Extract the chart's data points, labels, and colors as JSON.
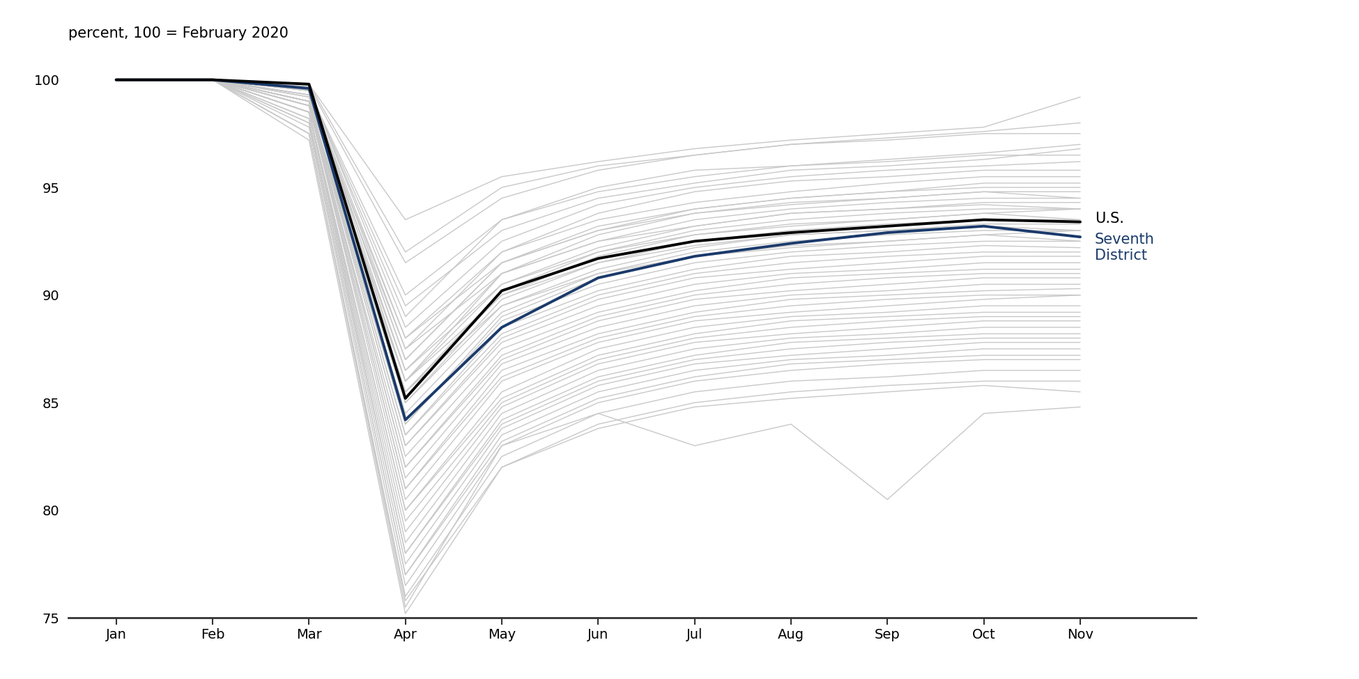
{
  "title": "percent, 100 = February 2020",
  "months": [
    "Jan",
    "Feb",
    "Mar",
    "Apr",
    "May",
    "Jun",
    "Jul",
    "Aug",
    "Sep",
    "Oct",
    "Nov"
  ],
  "month_indices": [
    0,
    1,
    2,
    3,
    4,
    5,
    6,
    7,
    8,
    9,
    10
  ],
  "us_data": [
    100.0,
    100.0,
    99.8,
    85.2,
    90.2,
    91.7,
    92.5,
    92.9,
    93.2,
    93.5,
    93.4
  ],
  "seventh_district": [
    100.0,
    100.0,
    99.6,
    84.2,
    88.5,
    90.8,
    91.8,
    92.4,
    92.9,
    93.2,
    92.7
  ],
  "states": [
    [
      100.0,
      100.0,
      99.8,
      93.5,
      95.5,
      96.2,
      96.8,
      97.2,
      97.5,
      97.8,
      99.2
    ],
    [
      100.0,
      100.0,
      99.7,
      91.5,
      94.5,
      95.8,
      96.5,
      97.0,
      97.3,
      97.6,
      98.0
    ],
    [
      100.0,
      100.0,
      99.8,
      92.0,
      95.0,
      96.0,
      96.5,
      97.0,
      97.2,
      97.5,
      97.5
    ],
    [
      100.0,
      100.0,
      99.5,
      90.0,
      93.5,
      94.8,
      95.5,
      96.0,
      96.3,
      96.6,
      97.0
    ],
    [
      100.0,
      100.0,
      99.5,
      89.5,
      93.0,
      94.5,
      95.2,
      95.8,
      96.0,
      96.3,
      96.8
    ],
    [
      100.0,
      100.0,
      99.5,
      89.0,
      93.5,
      95.0,
      95.8,
      96.0,
      96.2,
      96.5,
      96.5
    ],
    [
      100.0,
      100.0,
      99.6,
      88.5,
      92.5,
      94.2,
      95.0,
      95.5,
      95.8,
      96.0,
      96.2
    ],
    [
      100.0,
      100.0,
      99.5,
      88.0,
      92.0,
      93.8,
      94.8,
      95.3,
      95.5,
      95.8,
      95.8
    ],
    [
      100.0,
      100.0,
      99.5,
      87.5,
      92.0,
      93.5,
      94.3,
      94.8,
      95.2,
      95.5,
      95.5
    ],
    [
      100.0,
      100.0,
      99.5,
      87.0,
      91.5,
      93.2,
      94.0,
      94.5,
      94.8,
      95.2,
      95.2
    ],
    [
      100.0,
      100.0,
      99.5,
      87.0,
      91.5,
      93.0,
      94.0,
      94.5,
      94.8,
      95.0,
      95.0
    ],
    [
      100.0,
      100.0,
      99.5,
      86.5,
      91.0,
      92.8,
      93.8,
      94.3,
      94.5,
      94.8,
      94.8
    ],
    [
      100.0,
      100.0,
      99.5,
      86.0,
      91.0,
      92.5,
      93.5,
      94.0,
      94.3,
      94.5,
      94.5
    ],
    [
      100.0,
      100.0,
      99.3,
      86.0,
      90.5,
      92.2,
      93.2,
      93.8,
      94.0,
      94.3,
      94.3
    ],
    [
      100.0,
      100.0,
      99.3,
      85.5,
      90.2,
      92.0,
      93.0,
      93.5,
      93.8,
      94.0,
      94.0
    ],
    [
      100.0,
      100.0,
      99.5,
      85.5,
      90.0,
      91.8,
      92.8,
      93.3,
      93.5,
      93.8,
      94.0
    ],
    [
      100.0,
      100.0,
      99.3,
      85.0,
      89.8,
      91.5,
      92.5,
      93.0,
      93.3,
      93.5,
      93.5
    ],
    [
      100.0,
      100.0,
      99.2,
      85.0,
      89.5,
      91.2,
      92.2,
      92.8,
      93.0,
      93.3,
      93.3
    ],
    [
      100.0,
      100.0,
      99.0,
      84.5,
      89.2,
      91.0,
      92.0,
      92.5,
      92.8,
      93.0,
      93.0
    ],
    [
      100.0,
      100.0,
      99.0,
      84.0,
      89.0,
      90.8,
      91.8,
      92.3,
      92.5,
      92.8,
      93.0
    ],
    [
      100.0,
      100.0,
      99.0,
      84.0,
      88.8,
      90.5,
      91.5,
      92.0,
      92.3,
      92.5,
      92.5
    ],
    [
      100.0,
      100.0,
      99.0,
      83.5,
      88.5,
      90.2,
      91.2,
      91.8,
      92.0,
      92.3,
      92.2
    ],
    [
      100.0,
      100.0,
      99.0,
      83.5,
      88.2,
      90.0,
      91.0,
      91.5,
      91.8,
      92.0,
      92.0
    ],
    [
      100.0,
      100.0,
      99.0,
      83.0,
      88.0,
      89.8,
      90.8,
      91.2,
      91.5,
      91.8,
      91.8
    ],
    [
      100.0,
      100.0,
      99.0,
      83.0,
      87.8,
      89.5,
      90.5,
      91.0,
      91.2,
      91.5,
      91.5
    ],
    [
      100.0,
      100.0,
      98.8,
      82.5,
      87.5,
      89.2,
      90.2,
      90.8,
      91.0,
      91.2,
      91.2
    ],
    [
      100.0,
      100.0,
      99.0,
      82.0,
      87.2,
      89.0,
      90.0,
      90.5,
      90.8,
      91.0,
      91.0
    ],
    [
      100.0,
      100.0,
      98.8,
      82.0,
      87.0,
      88.8,
      89.8,
      90.2,
      90.5,
      90.8,
      90.8
    ],
    [
      100.0,
      100.0,
      98.8,
      81.5,
      86.8,
      88.5,
      89.5,
      90.0,
      90.2,
      90.5,
      90.5
    ],
    [
      100.0,
      100.0,
      98.8,
      81.0,
      86.5,
      88.2,
      89.2,
      89.8,
      90.0,
      90.2,
      90.3
    ],
    [
      100.0,
      100.0,
      98.8,
      81.0,
      86.2,
      88.0,
      89.0,
      89.5,
      89.8,
      90.0,
      90.0
    ],
    [
      100.0,
      100.0,
      98.8,
      80.5,
      86.0,
      87.8,
      88.8,
      89.2,
      89.5,
      89.8,
      90.0
    ],
    [
      100.0,
      100.0,
      98.5,
      80.0,
      85.5,
      87.5,
      88.5,
      89.0,
      89.2,
      89.5,
      89.5
    ],
    [
      100.0,
      100.0,
      98.5,
      80.0,
      85.2,
      87.2,
      88.2,
      88.8,
      89.0,
      89.2,
      89.2
    ],
    [
      100.0,
      100.0,
      98.5,
      79.5,
      85.0,
      87.0,
      88.0,
      88.5,
      88.8,
      89.0,
      89.0
    ],
    [
      100.0,
      100.0,
      98.5,
      79.0,
      84.8,
      86.8,
      87.8,
      88.2,
      88.5,
      88.8,
      88.8
    ],
    [
      100.0,
      100.0,
      98.5,
      78.5,
      84.5,
      86.5,
      87.5,
      88.0,
      88.2,
      88.5,
      88.5
    ],
    [
      100.0,
      100.0,
      98.5,
      78.0,
      84.2,
      86.2,
      87.2,
      87.8,
      88.0,
      88.2,
      88.2
    ],
    [
      100.0,
      100.0,
      98.2,
      78.0,
      84.0,
      86.0,
      87.0,
      87.5,
      87.8,
      88.0,
      88.0
    ],
    [
      100.0,
      100.0,
      98.2,
      77.5,
      83.8,
      85.8,
      86.8,
      87.2,
      87.5,
      87.8,
      87.8
    ],
    [
      100.0,
      100.0,
      98.0,
      77.0,
      83.5,
      85.5,
      86.5,
      87.0,
      87.2,
      87.5,
      87.5
    ],
    [
      100.0,
      100.0,
      98.0,
      77.0,
      83.2,
      85.2,
      86.2,
      86.8,
      87.0,
      87.2,
      87.2
    ],
    [
      100.0,
      100.0,
      97.8,
      76.5,
      83.0,
      85.0,
      86.0,
      86.5,
      86.8,
      87.0,
      87.0
    ],
    [
      100.0,
      100.0,
      97.5,
      76.0,
      82.5,
      84.5,
      85.5,
      86.0,
      86.2,
      86.5,
      86.5
    ],
    [
      100.0,
      100.0,
      97.5,
      75.8,
      82.0,
      84.0,
      85.0,
      85.5,
      85.8,
      86.0,
      86.0
    ],
    [
      100.0,
      100.0,
      97.5,
      75.5,
      83.0,
      84.5,
      83.0,
      84.0,
      80.5,
      84.5,
      84.8
    ],
    [
      100.0,
      100.0,
      97.2,
      75.2,
      82.0,
      83.8,
      84.8,
      85.2,
      85.5,
      85.8,
      85.5
    ],
    [
      100.0,
      100.0,
      98.5,
      86.0,
      90.0,
      91.5,
      92.3,
      92.8,
      93.0,
      93.2,
      93.0
    ],
    [
      100.0,
      100.0,
      99.0,
      87.5,
      91.0,
      92.5,
      93.2,
      93.8,
      94.0,
      94.2,
      94.0
    ],
    [
      100.0,
      100.0,
      99.2,
      88.0,
      91.5,
      93.0,
      93.8,
      94.2,
      94.5,
      94.8,
      94.5
    ],
    [
      100.0,
      100.0,
      99.0,
      86.5,
      90.5,
      92.0,
      92.8,
      93.2,
      93.5,
      93.8,
      93.5
    ],
    [
      100.0,
      100.0,
      98.8,
      85.5,
      89.5,
      91.0,
      91.8,
      92.2,
      92.5,
      92.8,
      92.5
    ]
  ],
  "us_color": "#000000",
  "seventh_color": "#1a3a6b",
  "states_color": "#c8c8c8",
  "us_linewidth": 2.8,
  "seventh_linewidth": 2.8,
  "states_linewidth": 1.0,
  "ylim": [
    75,
    101.5
  ],
  "yticks": [
    75,
    80,
    85,
    90,
    95,
    100
  ],
  "us_label": "U.S.",
  "seventh_label": "Seventh\nDistrict",
  "label_fontsize": 15,
  "title_fontsize": 15,
  "tick_fontsize": 14
}
